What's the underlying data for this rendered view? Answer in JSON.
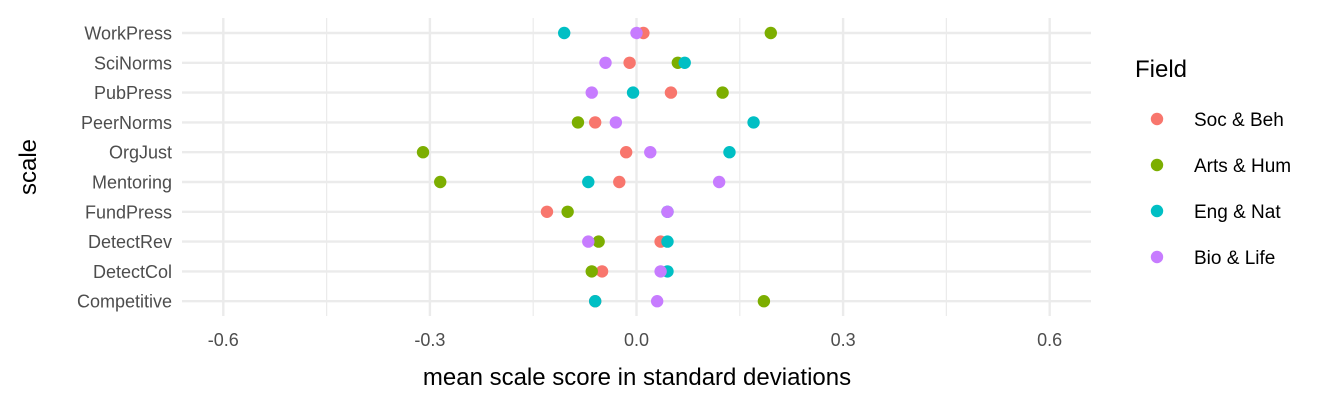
{
  "chart_data": {
    "type": "scatter",
    "xlabel": "mean scale score in standard deviations",
    "ylabel": "scale",
    "xlim": [
      -0.66,
      0.66
    ],
    "x_ticks": [
      -0.6,
      -0.3,
      0.0,
      0.3,
      0.6
    ],
    "x_tick_labels": [
      "-0.6",
      "-0.3",
      "0.0",
      "0.3",
      "0.6"
    ],
    "categories": [
      "WorkPress",
      "SciNorms",
      "PubPress",
      "PeerNorms",
      "OrgJust",
      "Mentoring",
      "FundPress",
      "DetectRev",
      "DetectCol",
      "Competitive"
    ],
    "grid": true,
    "legend": {
      "title": "Field",
      "position": "right"
    },
    "series": [
      {
        "name": "Soc & Beh",
        "color": "#F8766D",
        "values": [
          0.01,
          -0.01,
          0.05,
          -0.06,
          -0.015,
          -0.025,
          -0.13,
          0.035,
          -0.05,
          -0.06
        ]
      },
      {
        "name": "Arts & Hum",
        "color": "#7CAE00",
        "values": [
          0.195,
          0.06,
          0.125,
          -0.085,
          -0.31,
          -0.285,
          -0.1,
          -0.055,
          -0.065,
          0.185
        ]
      },
      {
        "name": "Eng & Nat",
        "color": "#00BFC4",
        "values": [
          -0.105,
          0.07,
          -0.005,
          0.17,
          0.135,
          -0.07,
          0.045,
          0.045,
          0.045,
          -0.06
        ]
      },
      {
        "name": "Bio & Life",
        "color": "#C77CFF",
        "values": [
          0.0,
          -0.045,
          -0.065,
          -0.03,
          0.02,
          0.12,
          0.045,
          -0.07,
          0.035,
          0.03
        ]
      }
    ]
  }
}
